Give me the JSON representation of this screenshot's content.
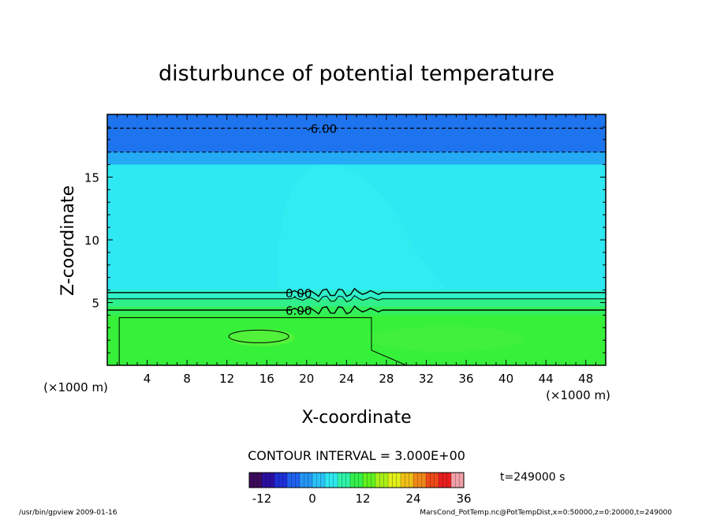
{
  "chart_data": {
    "type": "heatmap",
    "title": "disturbunce of potential temperature",
    "xlabel": "X-coordinate",
    "ylabel": "Z-coordinate",
    "x_unit_left": "(×1000 m)",
    "x_unit_right": "(×1000 m)",
    "xlim": [
      0,
      50
    ],
    "ylim": [
      0,
      20
    ],
    "xticks": [
      4,
      8,
      12,
      16,
      20,
      24,
      28,
      32,
      36,
      40,
      44,
      48
    ],
    "yticks": [
      5,
      10,
      15
    ],
    "contour_interval_text": "CONTOUR INTERVAL = 3.000E+00",
    "time_text": "t=249000 s",
    "colorbar": {
      "ticks": [
        -12,
        0,
        12,
        24,
        36
      ],
      "range": [
        -15,
        36
      ],
      "colors": [
        "#3d0a5c",
        "#2a0fa0",
        "#1d2fd8",
        "#1e62ee",
        "#2596f4",
        "#29c2f8",
        "#2fe8f0",
        "#2ff3a8",
        "#33f04a",
        "#60f020",
        "#a8f018",
        "#e2ee18",
        "#f0c018",
        "#f08818",
        "#ee4a18",
        "#e81e20",
        "#f0a0a8"
      ]
    },
    "contour_labels": [
      {
        "text": "-6.00",
        "x": 21.5,
        "z": 18.9
      },
      {
        "text": "0.00",
        "x": 19.2,
        "z": 5.8
      },
      {
        "text": "6.00",
        "x": 19.2,
        "z": 4.4
      }
    ],
    "value_bands_by_height": [
      {
        "z0": 17.0,
        "z1": 20.0,
        "approx_value": -6,
        "color": "#1e74ee"
      },
      {
        "z0": 16.0,
        "z1": 17.0,
        "approx_value": -3,
        "color": "#25aaf6"
      },
      {
        "z0": 6.0,
        "z1": 16.0,
        "approx_value": 0,
        "color": "#2ee8f2"
      },
      {
        "z0": 5.3,
        "z1": 6.0,
        "approx_value": 1,
        "color": "#2ff0c8"
      },
      {
        "z0": 4.7,
        "z1": 5.3,
        "approx_value": 3,
        "color": "#30f08c"
      },
      {
        "z0": 4.0,
        "z1": 4.7,
        "approx_value": 6,
        "color": "#32f05a"
      },
      {
        "z0": 0.0,
        "z1": 4.0,
        "approx_value": 9,
        "color": "#36f03a"
      }
    ]
  },
  "footer": {
    "left": "/usr/bin/gpview  2009-01-16",
    "right": "MarsCond_PotTemp.nc@PotTempDist,x=0:50000,z=0:20000,t=249000"
  }
}
